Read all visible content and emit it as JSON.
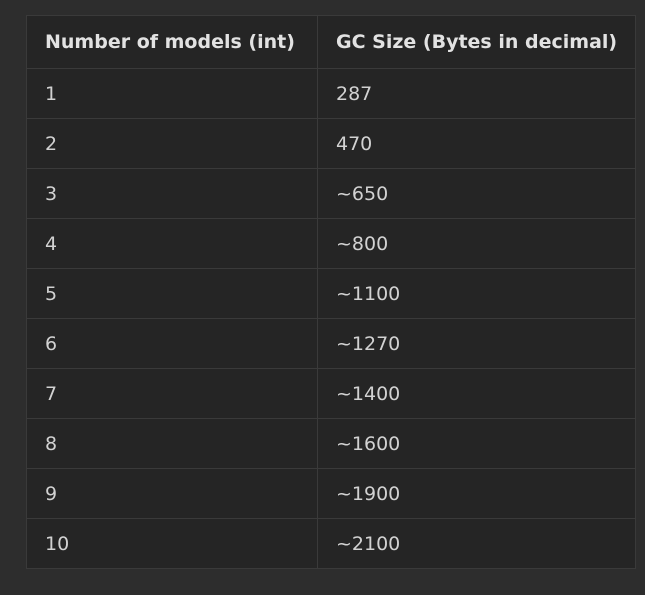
{
  "table": {
    "headers": [
      "Number of models (int)",
      "GC Size (Bytes in decimal)"
    ],
    "rows": [
      [
        "1",
        "287"
      ],
      [
        "2",
        "470"
      ],
      [
        "3",
        "~650"
      ],
      [
        "4",
        "~800"
      ],
      [
        "5",
        "~1100"
      ],
      [
        "6",
        "~1270"
      ],
      [
        "7",
        "~1400"
      ],
      [
        "8",
        "~1600"
      ],
      [
        "9",
        "~1900"
      ],
      [
        "10",
        "~2100"
      ]
    ]
  }
}
